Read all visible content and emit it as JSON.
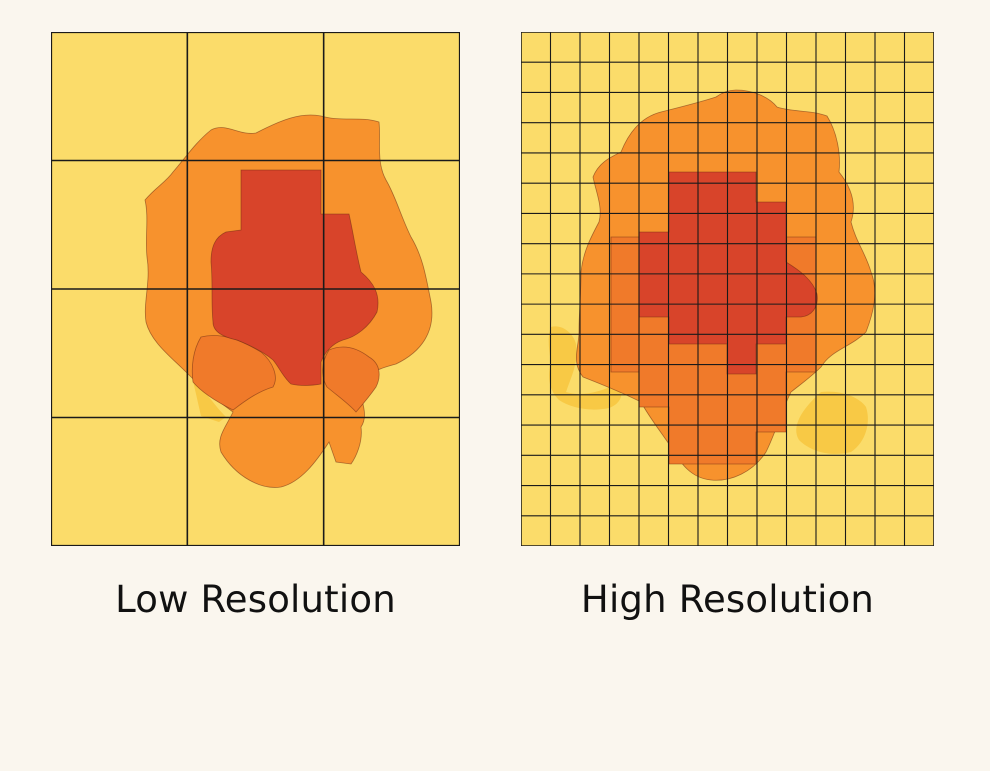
{
  "panels": {
    "low": {
      "caption": "Low Resolution",
      "grid": {
        "cols": 3,
        "rows": 4
      }
    },
    "high": {
      "caption": "High Resolution",
      "grid": {
        "cols": 14,
        "rows": 17
      }
    }
  },
  "colors": {
    "background": "#faf6ee",
    "cell_fill": "#fbdc6a",
    "outer_region": "#f7922d",
    "mid_region": "#f07a2a",
    "core_region": "#d8442a",
    "pale_blob": "#f7c63e",
    "grid_line": "#1a1a1a",
    "caption_text": "#111111"
  }
}
